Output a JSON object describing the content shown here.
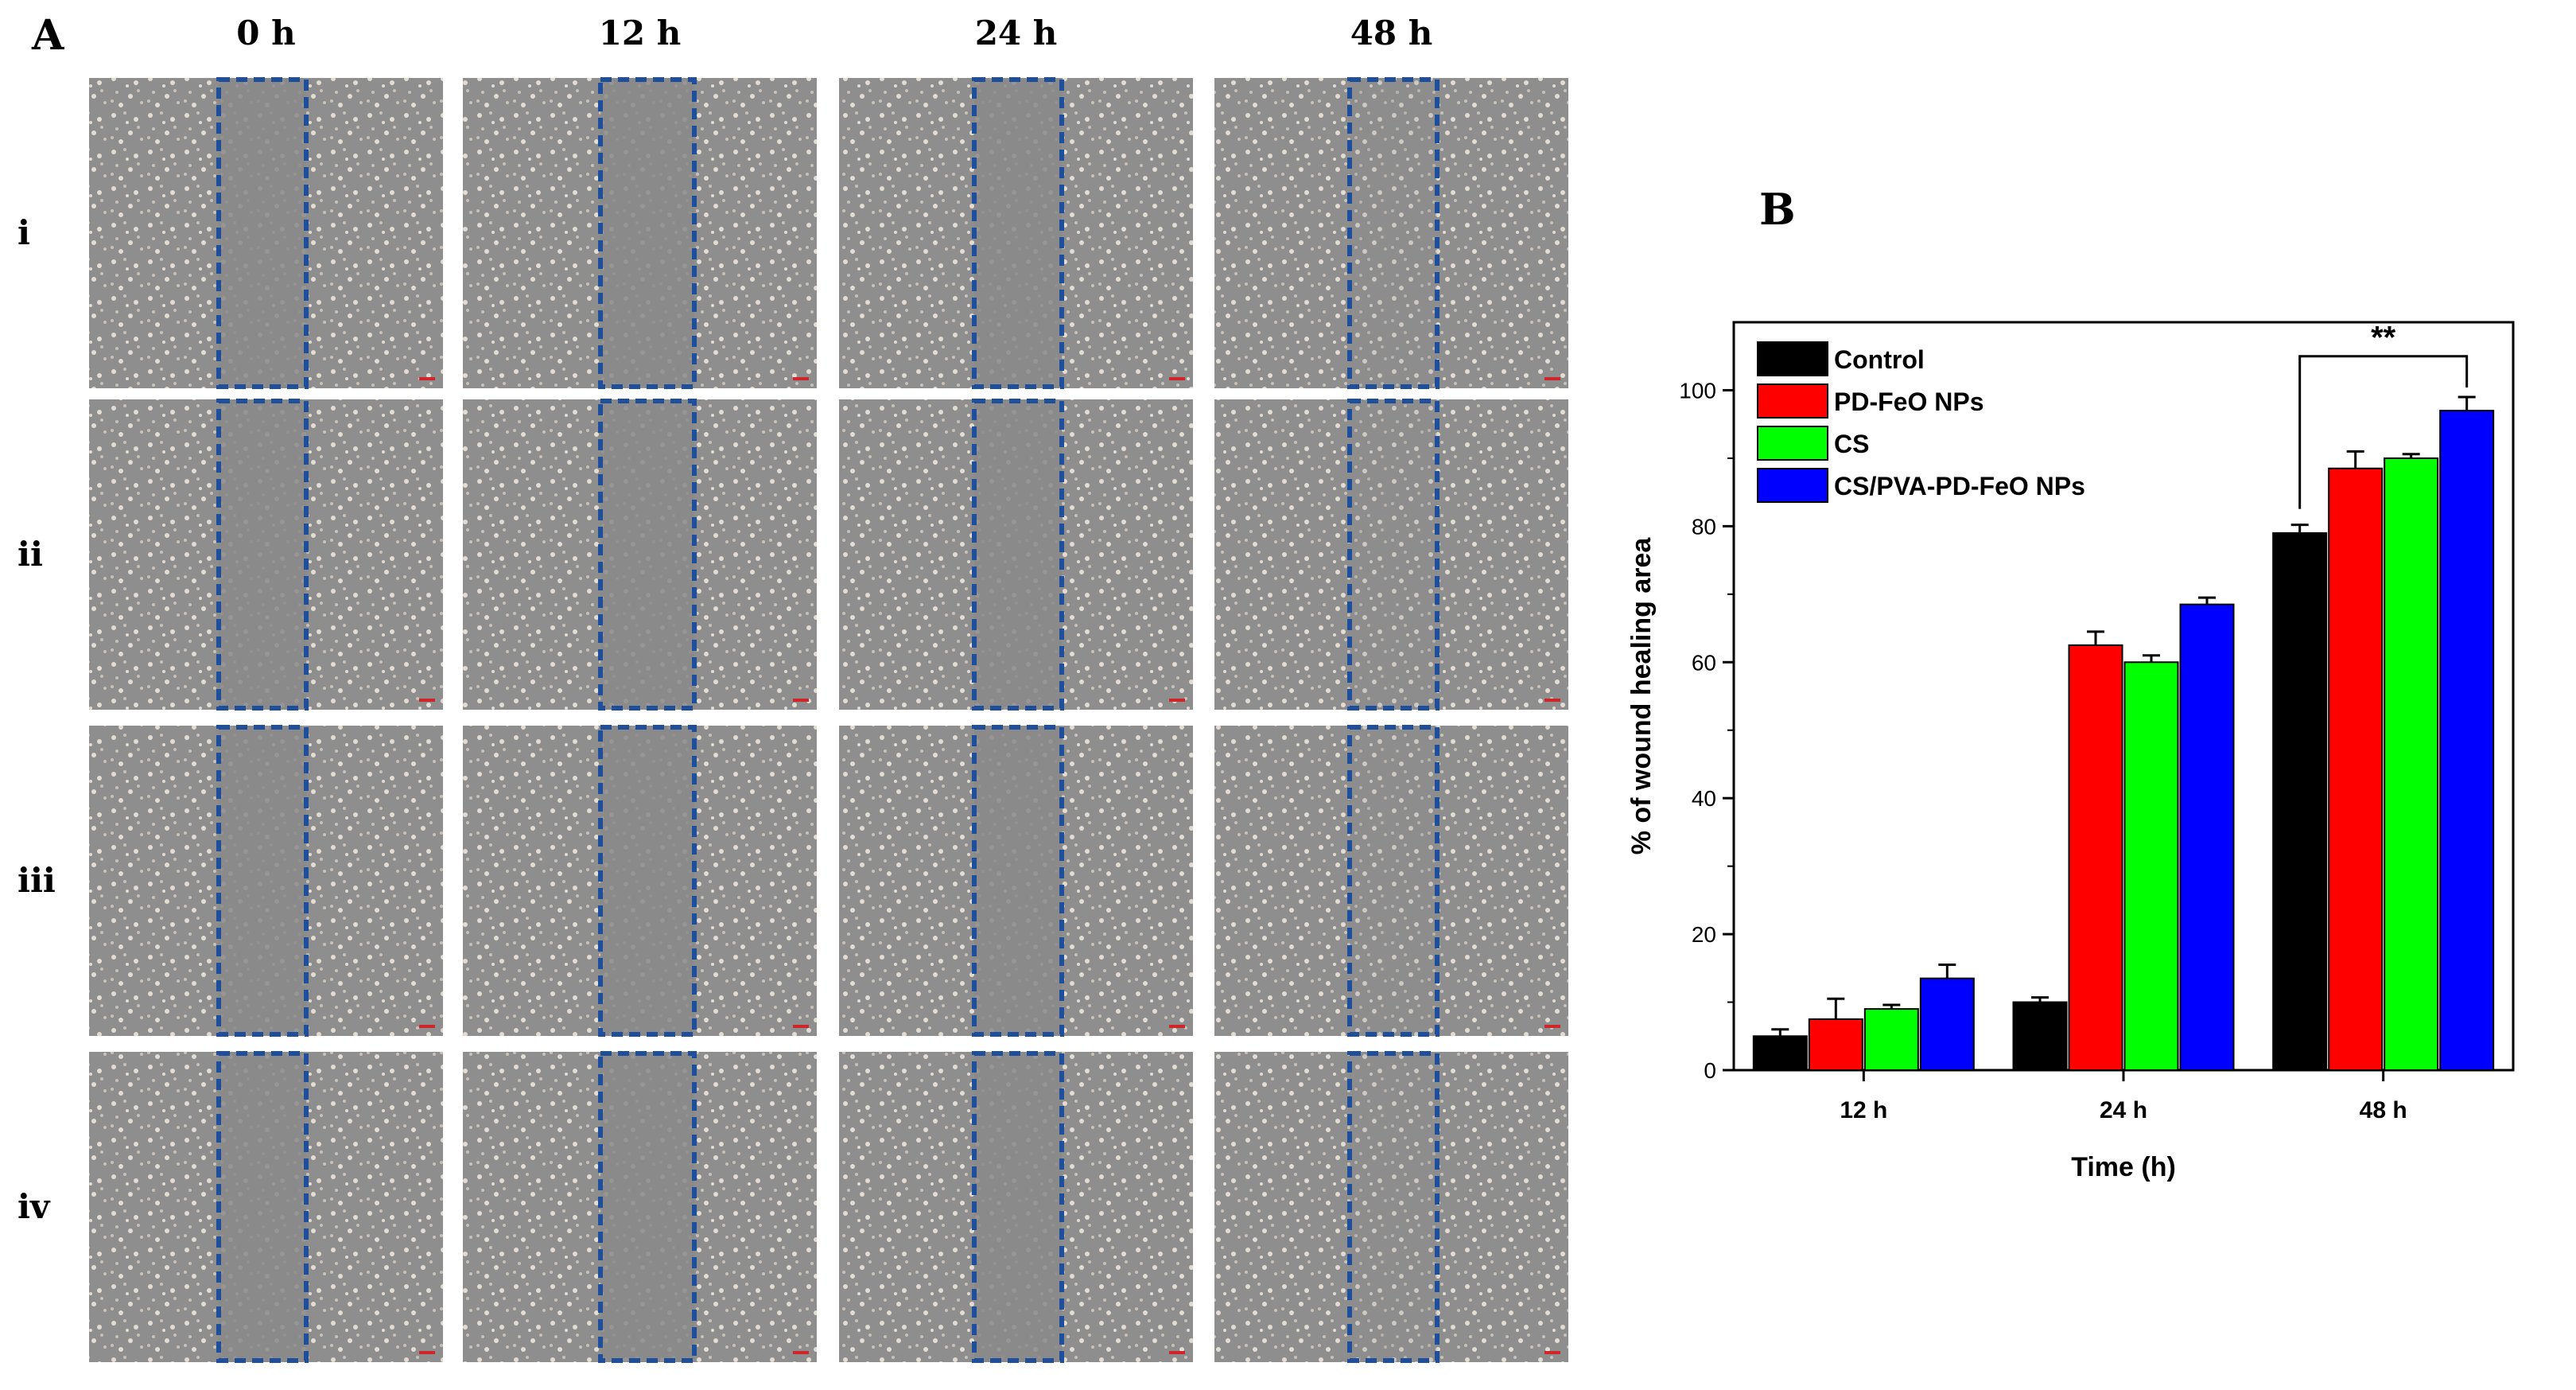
{
  "panel_a": {
    "label": "A",
    "time_labels": [
      "0 h",
      "12 h",
      "24 h",
      "48 h"
    ],
    "row_labels": [
      "i",
      "ii",
      "iii",
      "iv"
    ],
    "wound_box_color": "#1f4e9a",
    "micrograph_tint": "#8e8e8e"
  },
  "chart_data": {
    "panel_label": "B",
    "type": "bar",
    "title": "",
    "xlabel": "Time (h)",
    "ylabel": "% of wound healing area",
    "categories": [
      "12 h",
      "24 h",
      "48 h"
    ],
    "ylim": [
      0,
      110
    ],
    "yticks": [
      0,
      20,
      40,
      60,
      80,
      100
    ],
    "grid": false,
    "legend_position": "top-left",
    "series": [
      {
        "name": "Control",
        "color": "#000000",
        "values": [
          5.0,
          10.0,
          79.0
        ],
        "errors": [
          1.0,
          0.7,
          1.2
        ]
      },
      {
        "name": "PD-FeO NPs",
        "color": "#ff0000",
        "values": [
          7.5,
          62.5,
          88.5
        ],
        "errors": [
          3.0,
          2.0,
          2.5
        ]
      },
      {
        "name": "CS",
        "color": "#00ff00",
        "values": [
          9.0,
          60.0,
          90.0
        ],
        "errors": [
          0.6,
          1.0,
          0.6
        ]
      },
      {
        "name": "CS/PVA-PD-FeO NPs",
        "color": "#0000ff",
        "values": [
          13.5,
          68.5,
          97.0
        ],
        "errors": [
          2.0,
          1.0,
          2.0
        ]
      }
    ],
    "annotations": [
      {
        "text": "**",
        "category": "48 h",
        "between": [
          "Control",
          "CS/PVA-PD-FeO NPs"
        ]
      }
    ]
  }
}
